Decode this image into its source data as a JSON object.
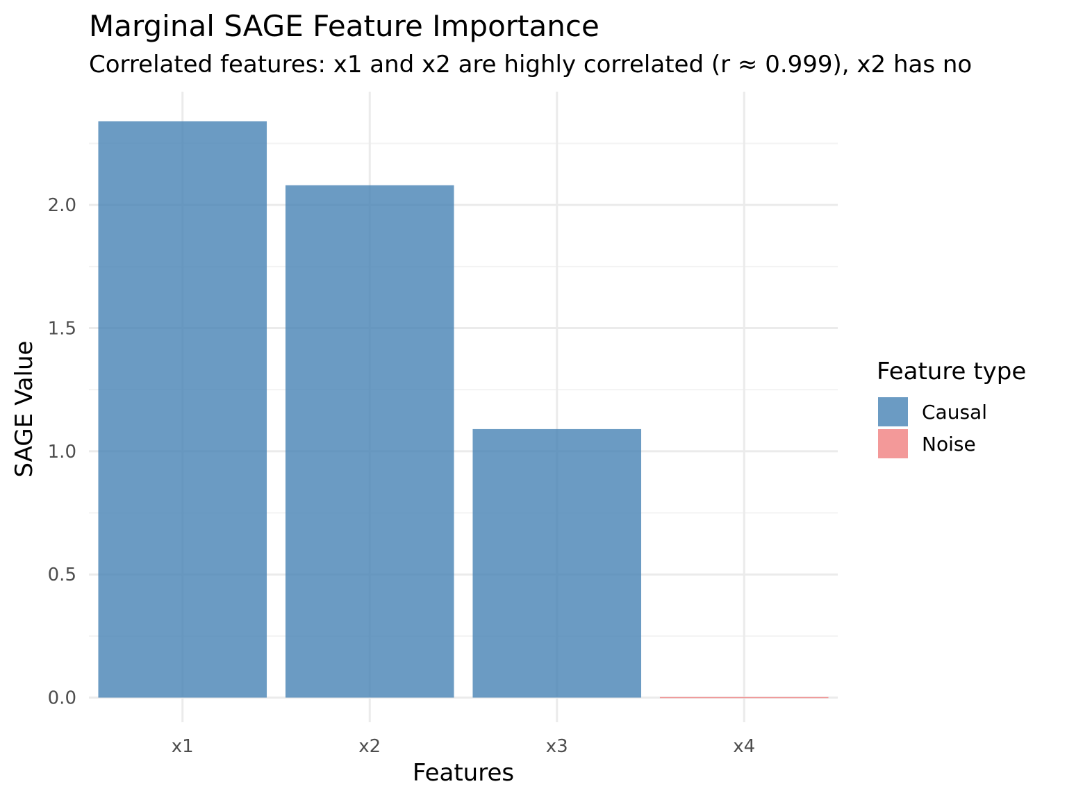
{
  "chart_data": {
    "type": "bar",
    "title": "Marginal SAGE Feature Importance",
    "subtitle": "Correlated features: x1 and x2 are highly correlated (r ≈ 0.999), x2 has no",
    "xlabel": "Features",
    "ylabel": "SAGE Value",
    "categories": [
      "x1",
      "x2",
      "x3",
      "x4"
    ],
    "values": [
      2.34,
      2.08,
      1.09,
      0.0
    ],
    "feature_type": [
      "Causal",
      "Causal",
      "Causal",
      "Noise"
    ],
    "ylim": [
      -0.1,
      2.46
    ],
    "yticks": [
      0.0,
      0.5,
      1.0,
      1.5,
      2.0
    ],
    "ytick_labels": [
      "0.0",
      "0.5",
      "1.0",
      "1.5",
      "2.0"
    ],
    "grid": true,
    "legend": {
      "title": "Feature type",
      "placement": "right",
      "entries": [
        {
          "label": "Causal",
          "color": "#4682b4"
        },
        {
          "label": "Noise",
          "color": "#f08080"
        }
      ]
    },
    "colors": {
      "Causal": "#4682b4",
      "Noise": "#f08080",
      "grid_major": "#ebebeb",
      "grid_minor": "#f3f3f3"
    }
  }
}
